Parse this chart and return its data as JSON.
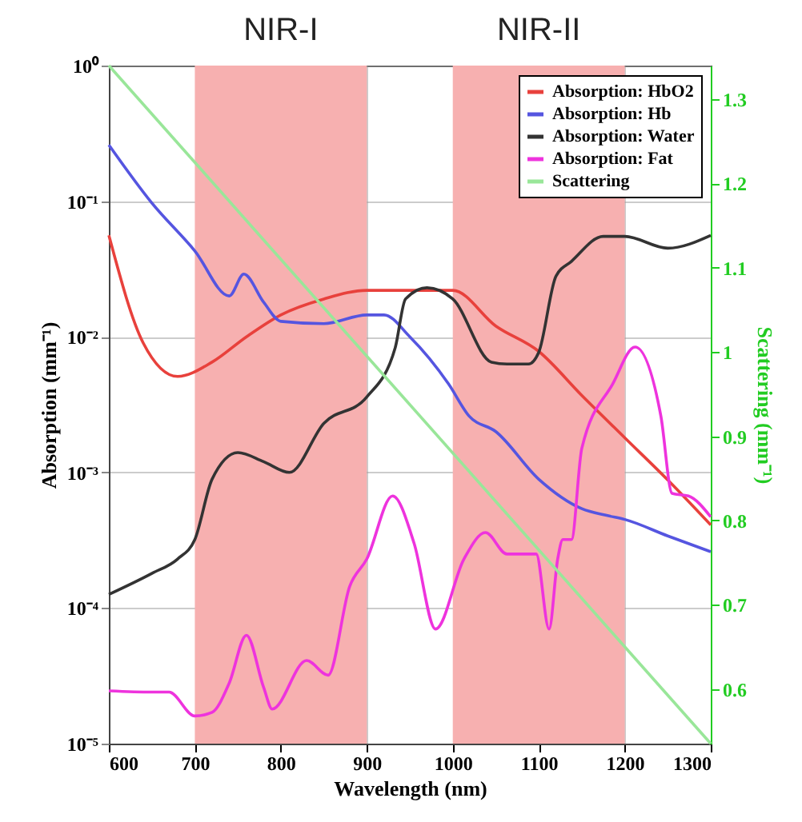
{
  "chart_data": {
    "type": "line",
    "xlabel": "Wavelength (nm)",
    "ylabel": "Absorption (mm⁻¹)",
    "y2label": "Scattering (mm⁻¹)",
    "xlim": [
      600,
      1300
    ],
    "xticks": [
      600,
      700,
      800,
      900,
      1000,
      1100,
      1200,
      1300
    ],
    "ylim": [
      1e-05,
      1
    ],
    "yticks": [
      {
        "value": 1e-05,
        "label": "10⁻⁵"
      },
      {
        "value": 0.0001,
        "label": "10⁻⁴"
      },
      {
        "value": 0.001,
        "label": "10⁻³"
      },
      {
        "value": 0.01,
        "label": "10⁻²"
      },
      {
        "value": 0.1,
        "label": "10⁻¹"
      },
      {
        "value": 1,
        "label": "10⁰"
      }
    ],
    "y2lim": [
      0.535,
      1.34
    ],
    "y2ticks": [
      0.6,
      0.7,
      0.8,
      0.9,
      1,
      1.1,
      1.2,
      1.3
    ],
    "log": "y",
    "grid": true,
    "legend": "top right",
    "bands": [
      {
        "axis": "x",
        "from": 700,
        "to": 900,
        "label": "NIR-I",
        "color": "#f7b0b0"
      },
      {
        "axis": "x",
        "from": 1000,
        "to": 1200,
        "label": "NIR-II",
        "color": "#f7b0b0"
      }
    ],
    "series": [
      {
        "name": "Absorption: HbO2",
        "color": "#e8413c",
        "x": [
          600,
          640,
          680,
          720,
          760,
          800,
          850,
          900,
          930,
          1000,
          1050,
          1100,
          1150,
          1200,
          1250,
          1300
        ],
        "values": [
          0.056,
          0.009,
          0.0051,
          0.0065,
          0.01,
          0.0145,
          0.019,
          0.022,
          0.022,
          0.022,
          0.012,
          0.0078,
          0.0037,
          0.0018,
          0.00088,
          0.00041
        ]
      },
      {
        "name": "Absorption: Hb",
        "color": "#5555e0",
        "x": [
          600,
          650,
          700,
          740,
          757,
          780,
          800,
          850,
          900,
          920,
          950,
          995,
          1019,
          1050,
          1100,
          1150,
          1180,
          1200,
          1250,
          1300
        ],
        "values": [
          0.26,
          0.097,
          0.043,
          0.02,
          0.029,
          0.018,
          0.013,
          0.0125,
          0.0145,
          0.0145,
          0.01,
          0.0045,
          0.0026,
          0.002,
          0.00089,
          0.00054,
          0.00048,
          0.00045,
          0.00034,
          0.00026
        ]
      },
      {
        "name": "Absorption: Water",
        "color": "#333333",
        "x": [
          600,
          650,
          680,
          700,
          720,
          750,
          780,
          810,
          850,
          900,
          933,
          945,
          970,
          1000,
          1045,
          1063,
          1088,
          1100,
          1120,
          1138,
          1175,
          1200,
          1250,
          1300
        ],
        "values": [
          0.000126,
          0.00018,
          0.00023,
          0.00032,
          0.00089,
          0.0014,
          0.0012,
          0.001,
          0.0023,
          0.0036,
          0.0083,
          0.019,
          0.023,
          0.019,
          0.0065,
          0.0063,
          0.0063,
          0.0077,
          0.028,
          0.036,
          0.055,
          0.055,
          0.045,
          0.056
        ]
      },
      {
        "name": "Absorption: Fat",
        "color": "#ee33dd",
        "x": [
          600,
          650,
          670,
          700,
          720,
          740,
          760,
          780,
          790,
          830,
          855,
          880,
          900,
          930,
          955,
          980,
          1013,
          1038,
          1063,
          1097,
          1112,
          1122,
          1128,
          1138,
          1150,
          1186,
          1212,
          1242,
          1255,
          1274,
          1300
        ],
        "values": [
          2.45e-05,
          2.4e-05,
          2.4e-05,
          1.6e-05,
          1.7e-05,
          2.8e-05,
          6.3e-05,
          2.6e-05,
          1.8e-05,
          4.1e-05,
          3.2e-05,
          0.000144,
          0.00023,
          0.00067,
          0.0003,
          7e-05,
          0.00023,
          0.00036,
          0.00025,
          0.00025,
          7e-05,
          0.00023,
          0.00032,
          0.00032,
          0.0015,
          0.0045,
          0.0084,
          0.0026,
          0.0007,
          0.00067,
          0.00047
        ]
      },
      {
        "name": "Scattering",
        "color": "#99e699",
        "axis": "y2",
        "x": [
          600,
          1300
        ],
        "values": [
          1.34,
          0.535
        ]
      }
    ]
  }
}
